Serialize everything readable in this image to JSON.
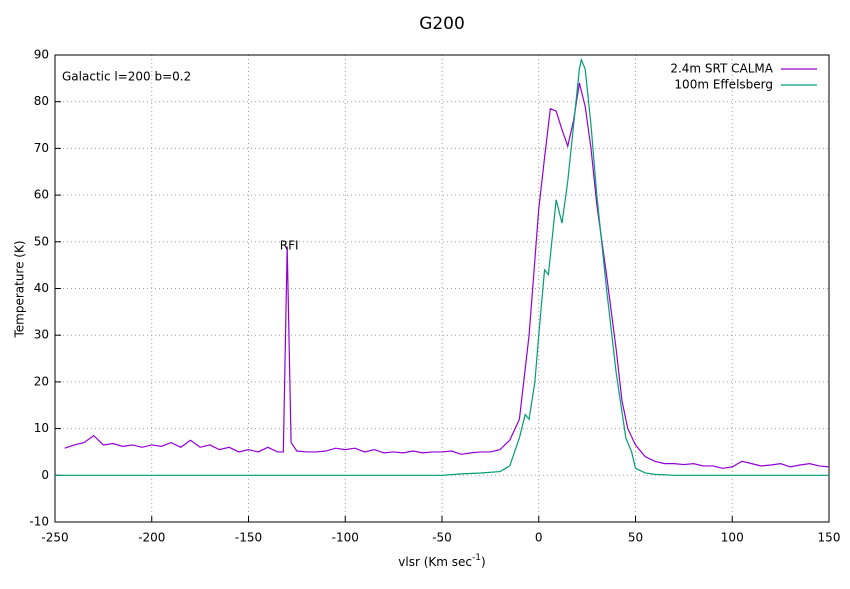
{
  "chart_data": {
    "type": "line",
    "title": "G200",
    "xlabel": {
      "text": "vlsr (Km sec",
      "sup": "-1",
      "tail": ")"
    },
    "ylabel": "Temperature (K)",
    "annotations": [
      {
        "text": "Galactic l=200 b=0.2"
      },
      {
        "text": "RFI",
        "x": -130,
        "y": 50
      }
    ],
    "xlim": [
      -250,
      150
    ],
    "xticks": [
      -250,
      -200,
      -150,
      -100,
      -50,
      0,
      50,
      100,
      150
    ],
    "ylim": [
      -10,
      90
    ],
    "yticks": [
      -10,
      0,
      10,
      20,
      30,
      40,
      50,
      60,
      70,
      80,
      90
    ],
    "grid": true,
    "legend": "top-right",
    "series": [
      {
        "name": "2.4m SRT CALMA",
        "color": "#9400d3",
        "x": [
          -245,
          -240,
          -235,
          -230,
          -225,
          -220,
          -215,
          -210,
          -205,
          -200,
          -195,
          -190,
          -185,
          -180,
          -175,
          -170,
          -165,
          -160,
          -155,
          -150,
          -145,
          -140,
          -135,
          -132,
          -130,
          -128,
          -125,
          -120,
          -115,
          -110,
          -105,
          -100,
          -95,
          -90,
          -85,
          -80,
          -75,
          -70,
          -65,
          -60,
          -55,
          -50,
          -45,
          -40,
          -35,
          -30,
          -25,
          -20,
          -15,
          -10,
          -5,
          0,
          3,
          6,
          9,
          12,
          15,
          18,
          21,
          24,
          27,
          30,
          35,
          40,
          43,
          46,
          50,
          55,
          60,
          65,
          70,
          75,
          80,
          85,
          90,
          95,
          100,
          105,
          110,
          115,
          120,
          125,
          130,
          135,
          140,
          145,
          150
        ],
        "values": [
          5.8,
          6.5,
          7,
          8.5,
          6.5,
          6.8,
          6.2,
          6.5,
          6,
          6.5,
          6.2,
          7,
          6,
          7.5,
          6,
          6.5,
          5.5,
          6,
          5,
          5.5,
          5,
          6,
          5,
          5,
          49,
          7,
          5.2,
          5,
          5,
          5.2,
          5.8,
          5.5,
          5.8,
          5,
          5.5,
          4.8,
          5,
          4.8,
          5.2,
          4.8,
          5,
          5,
          5.2,
          4.5,
          4.8,
          5,
          5,
          5.5,
          7.5,
          12,
          30,
          57,
          68,
          78.5,
          78,
          74,
          70.5,
          76,
          84,
          79,
          70,
          58,
          43,
          27,
          16,
          10,
          6.5,
          4,
          3,
          2.5,
          2.5,
          2.3,
          2.5,
          2,
          2,
          1.5,
          1.8,
          3,
          2.5,
          2,
          2.2,
          2.5,
          1.8,
          2.2,
          2.5,
          2,
          1.8
        ]
      },
      {
        "name": "100m Effelsberg",
        "color": "#009e73",
        "x": [
          -250,
          -200,
          -150,
          -100,
          -50,
          -40,
          -30,
          -20,
          -15,
          -10,
          -7,
          -5,
          -2,
          0,
          3,
          5,
          8,
          9,
          12,
          13,
          15,
          18,
          21,
          22,
          24,
          27,
          30,
          35,
          40,
          45,
          48,
          50,
          55,
          60,
          70,
          100,
          150
        ],
        "values": [
          0,
          0,
          0,
          0,
          0,
          0.3,
          0.5,
          0.8,
          2,
          8,
          13,
          12,
          20,
          30,
          44,
          43,
          55,
          59,
          54,
          57,
          63,
          75,
          87,
          89,
          87,
          75,
          60,
          40,
          22,
          8,
          5,
          1.5,
          0.5,
          0.2,
          0,
          0,
          0
        ]
      }
    ]
  }
}
